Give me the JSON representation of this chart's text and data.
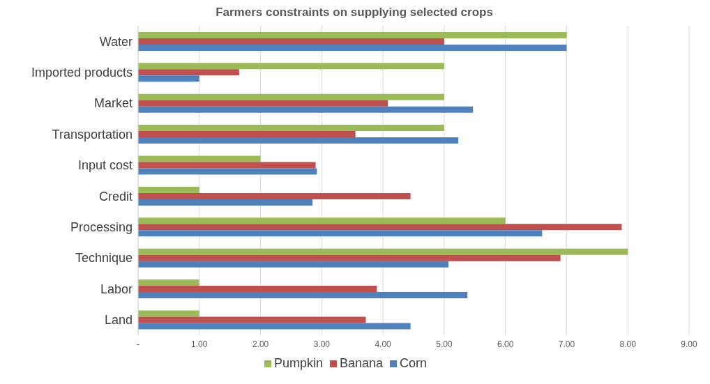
{
  "chart_data": {
    "type": "bar",
    "orientation": "horizontal",
    "title": "Farmers constraints on supplying selected crops",
    "categories": [
      "Water",
      "Imported products",
      "Market",
      "Transportation",
      "Input cost",
      "Credit",
      "Processing",
      "Technique",
      "Labor",
      "Land"
    ],
    "series": [
      {
        "name": "Pumpkin",
        "color": "#9bbb59",
        "values": [
          7,
          5,
          5,
          5,
          2,
          1,
          6,
          8,
          1,
          1
        ]
      },
      {
        "name": "Banana",
        "color": "#c0504d",
        "values": [
          5,
          1.65,
          4.08,
          3.55,
          2.9,
          4.45,
          7.9,
          6.9,
          3.9,
          3.72
        ]
      },
      {
        "name": "Corn",
        "color": "#4f81bd",
        "values": [
          7,
          1,
          5.47,
          5.23,
          2.92,
          2.85,
          6.6,
          5.07,
          5.38,
          4.45
        ]
      }
    ],
    "xlim": [
      0,
      9
    ],
    "xticks": [
      {
        "value": 0,
        "label": "-"
      },
      {
        "value": 1,
        "label": "1.00"
      },
      {
        "value": 2,
        "label": "2.00"
      },
      {
        "value": 3,
        "label": "3.00"
      },
      {
        "value": 4,
        "label": "4.00"
      },
      {
        "value": 5,
        "label": "5.00"
      },
      {
        "value": 6,
        "label": "6.00"
      },
      {
        "value": 7,
        "label": "7.00"
      },
      {
        "value": 8,
        "label": "8.00"
      },
      {
        "value": 9,
        "label": "9.00"
      }
    ],
    "grid": "x",
    "legend": "bottom"
  }
}
